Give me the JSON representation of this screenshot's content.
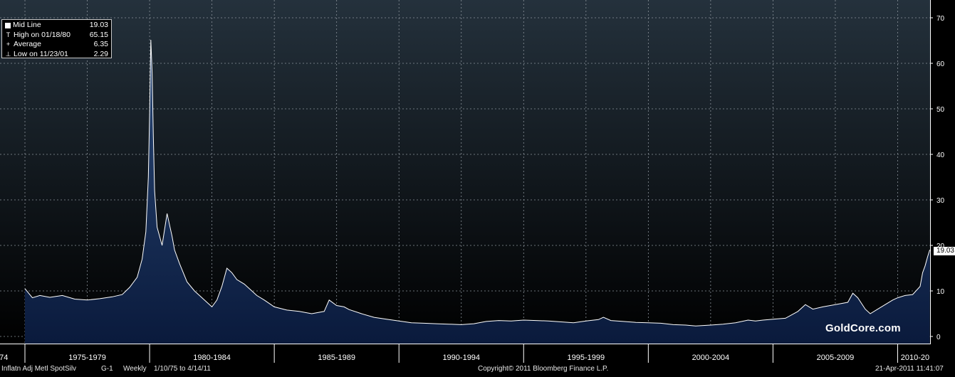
{
  "chart_data": {
    "type": "area",
    "series": [
      {
        "name": "Mid Line",
        "color": "#ffffff",
        "fill": "#0d2246",
        "x": [
          1975.0,
          1975.3,
          1975.6,
          1976.0,
          1976.5,
          1977.0,
          1977.5,
          1978.0,
          1978.5,
          1978.9,
          1979.2,
          1979.5,
          1979.7,
          1979.85,
          1979.95,
          1980.0,
          1980.05,
          1980.1,
          1980.15,
          1980.2,
          1980.3,
          1980.5,
          1980.7,
          1980.9,
          1981.0,
          1981.2,
          1981.5,
          1981.8,
          1982.0,
          1982.3,
          1982.5,
          1982.7,
          1982.9,
          1983.1,
          1983.3,
          1983.5,
          1983.8,
          1984.0,
          1984.3,
          1984.6,
          1985.0,
          1985.5,
          1986.0,
          1986.5,
          1987.0,
          1987.2,
          1987.5,
          1987.8,
          1988.0,
          1988.5,
          1989.0,
          1989.5,
          1990.0,
          1990.5,
          1991.0,
          1991.5,
          1992.0,
          1992.5,
          1993.0,
          1993.5,
          1994.0,
          1994.5,
          1995.0,
          1995.5,
          1996.0,
          1996.5,
          1997.0,
          1997.5,
          1998.0,
          1998.2,
          1998.5,
          1999.0,
          1999.5,
          2000.0,
          2000.5,
          2001.0,
          2001.5,
          2001.9,
          2002.5,
          2003.0,
          2003.5,
          2004.0,
          2004.3,
          2004.6,
          2005.0,
          2005.5,
          2006.0,
          2006.3,
          2006.6,
          2007.0,
          2007.5,
          2008.0,
          2008.2,
          2008.4,
          2008.7,
          2008.9,
          2009.2,
          2009.5,
          2009.8,
          2010.0,
          2010.3,
          2010.6,
          2010.9,
          2011.0,
          2011.1,
          2011.2,
          2011.29
        ],
        "values": [
          10.5,
          8.5,
          9.0,
          8.6,
          9.0,
          8.2,
          8.0,
          8.3,
          8.7,
          9.2,
          10.8,
          13.0,
          17.0,
          23.0,
          35.0,
          49.0,
          65.15,
          58.0,
          44.0,
          32.0,
          24.0,
          20.0,
          27.0,
          22.0,
          19.0,
          16.0,
          12.0,
          10.0,
          9.0,
          7.5,
          6.5,
          8.0,
          11.0,
          15.0,
          14.0,
          12.5,
          11.5,
          10.5,
          9.0,
          8.0,
          6.5,
          5.8,
          5.5,
          5.0,
          5.5,
          8.0,
          6.8,
          6.5,
          5.9,
          5.0,
          4.2,
          3.8,
          3.4,
          3.0,
          2.9,
          2.8,
          2.7,
          2.6,
          2.8,
          3.3,
          3.5,
          3.4,
          3.6,
          3.5,
          3.4,
          3.2,
          3.0,
          3.4,
          3.7,
          4.2,
          3.5,
          3.3,
          3.1,
          3.0,
          2.9,
          2.6,
          2.5,
          2.29,
          2.5,
          2.7,
          3.0,
          3.6,
          3.4,
          3.6,
          3.8,
          4.0,
          5.5,
          7.0,
          6.0,
          6.5,
          7.0,
          7.5,
          9.5,
          8.5,
          6.0,
          5.0,
          6.0,
          7.0,
          8.0,
          8.5,
          9.0,
          9.2,
          11.0,
          14.0,
          15.5,
          17.5,
          19.03
        ]
      }
    ],
    "xlim": [
      1974.0,
      2011.3
    ],
    "ylim": [
      0,
      72
    ],
    "yticks": [
      0,
      10,
      20,
      30,
      40,
      50,
      60,
      70
    ],
    "xtick_labels": [
      "74",
      "1975-1979",
      "1980-1984",
      "1985-1989",
      "1990-1994",
      "1995-1999",
      "2000-2004",
      "2005-2009",
      "2010-20"
    ],
    "xtick_centers": [
      1974.15,
      1977.5,
      1982.5,
      1987.5,
      1992.5,
      1997.5,
      2002.5,
      2007.5,
      2010.7
    ],
    "xgrid_years": [
      1975,
      1977.5,
      1980,
      1982.5,
      1985,
      1987.5,
      1990,
      1992.5,
      1995,
      1997.5,
      2000,
      2002.5,
      2005,
      2007.5,
      2010
    ],
    "year_dividers": [
      1975,
      1980,
      1985,
      1990,
      1995,
      2000,
      2005,
      2010
    ],
    "grid": true,
    "y_axis_side": "right",
    "last_value_label": "19.03"
  },
  "legend": {
    "rows": [
      {
        "marker": "box",
        "label": "Mid Line",
        "value": "19.03"
      },
      {
        "marker": "T",
        "label": "High on 01/18/80",
        "value": "65.15"
      },
      {
        "marker": "+",
        "label": "Average",
        "value": "6.35"
      },
      {
        "marker": "⊥",
        "label": "Low on 11/23/01",
        "value": "2.29"
      }
    ]
  },
  "footer": {
    "security": "Inflatn Adj Metl SpotSilv",
    "chart_id": "G-1",
    "period": "Weekly",
    "range": "1/10/75 to 4/14/11",
    "copyright": "Copyright© 2011 Bloomberg Finance L.P.",
    "timestamp": "21-Apr-2011 11:41:07"
  },
  "watermark": "GoldCore.com",
  "colors": {
    "background_top": "#24313c",
    "background_bottom": "#000000",
    "grid": "#8a929a",
    "line": "#ffffff",
    "area_fill": "#0d2246"
  }
}
